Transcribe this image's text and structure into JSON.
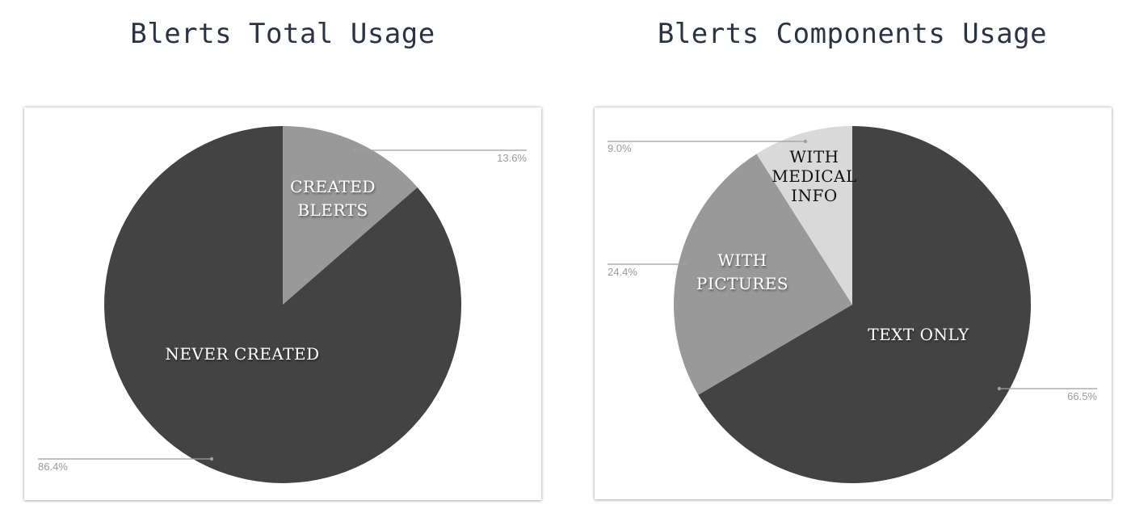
{
  "chart_data": [
    {
      "type": "pie",
      "title": "Blerts Total Usage",
      "start_angle_deg": 0,
      "direction": "clockwise",
      "slices": [
        {
          "label": [
            "CREATED",
            "BLERTS"
          ],
          "value": 13.6,
          "value_label": "13.6%",
          "color": "#999999",
          "text_color": "#ffffff"
        },
        {
          "label": [
            "NEVER CREATED"
          ],
          "value": 86.4,
          "value_label": "86.4%",
          "color": "#434343",
          "text_color": "#ffffff"
        }
      ]
    },
    {
      "type": "pie",
      "title": "Blerts Components Usage",
      "start_angle_deg": 0,
      "direction": "clockwise",
      "slices": [
        {
          "label": [
            "TEXT ONLY"
          ],
          "value": 66.5,
          "value_label": "66.5%",
          "color": "#434343",
          "text_color": "#ffffff"
        },
        {
          "label": [
            "WITH",
            "PICTURES"
          ],
          "value": 24.4,
          "value_label": "24.4%",
          "color": "#999999",
          "text_color": "#ffffff"
        },
        {
          "label": [
            "WITH",
            "MEDICAL",
            "INFO"
          ],
          "value": 9.0,
          "value_label": "9.0%",
          "color": "#d9d9d9",
          "text_color": "#111111"
        }
      ]
    }
  ]
}
